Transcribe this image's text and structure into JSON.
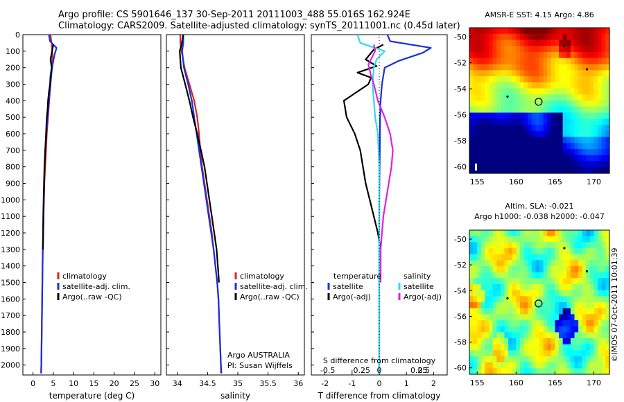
{
  "header": {
    "line1": "Argo profile: CS 5901646_137 30-Sep-2011 20111003_488 55.016S 162.924E",
    "line2": "Climatology: CARS2009. Satellite-adjusted climatology: synTS_20111001.nc (0.45d later)"
  },
  "timestamp": "©IMOS 07-Oct-2011 10:01:39",
  "colors": {
    "climatology": "#e02020",
    "satellite": "#1530e0",
    "argo": "#000000",
    "salinity_satellite": "#30d8f0",
    "salinity_argo": "#e020e0"
  },
  "chart_data": [
    {
      "id": "temperature",
      "type": "line",
      "xlabel": "temperature (deg C)",
      "ylabel": "",
      "xlim": [
        -2.5,
        31.5
      ],
      "ylim": [
        2060,
        0
      ],
      "xticks": [
        "0",
        "5",
        "10",
        "15",
        "20",
        "25",
        "30"
      ],
      "yticks": [
        "0",
        "100",
        "200",
        "300",
        "400",
        "500",
        "600",
        "700",
        "800",
        "900",
        "1000",
        "1100",
        "1200",
        "1300",
        "1400",
        "1500",
        "1600",
        "1700",
        "1800",
        "1900",
        "2000"
      ],
      "legend": [
        "climatology",
        "satellite-adj. clim.",
        "Argo(..raw -QC)"
      ],
      "series": [
        {
          "name": "climatology",
          "color": "#e02020",
          "points": [
            [
              4.3,
              0
            ],
            [
              4.6,
              60
            ],
            [
              4.8,
              120
            ],
            [
              4.6,
              200
            ],
            [
              4.3,
              300
            ],
            [
              4.0,
              400
            ],
            [
              3.7,
              500
            ],
            [
              3.4,
              600
            ],
            [
              3.2,
              700
            ],
            [
              3.0,
              800
            ],
            [
              2.8,
              900
            ],
            [
              2.7,
              1000
            ],
            [
              2.6,
              1100
            ],
            [
              2.5,
              1200
            ],
            [
              2.4,
              1300
            ],
            [
              2.35,
              1400
            ],
            [
              2.3,
              1500
            ],
            [
              2.25,
              1600
            ],
            [
              2.2,
              1700
            ],
            [
              2.15,
              1800
            ],
            [
              2.1,
              1900
            ],
            [
              2.05,
              2000
            ],
            [
              2.0,
              2050
            ]
          ]
        },
        {
          "name": "satellite-adj. clim.",
          "color": "#1530e0",
          "points": [
            [
              3.9,
              0
            ],
            [
              4.2,
              40
            ],
            [
              5.8,
              80
            ],
            [
              5.3,
              120
            ],
            [
              4.7,
              200
            ],
            [
              4.3,
              300
            ],
            [
              3.9,
              400
            ],
            [
              3.6,
              500
            ],
            [
              3.3,
              600
            ],
            [
              3.0,
              700
            ],
            [
              2.8,
              800
            ],
            [
              2.7,
              900
            ],
            [
              2.6,
              1000
            ],
            [
              2.5,
              1100
            ],
            [
              2.45,
              1200
            ],
            [
              2.4,
              1300
            ],
            [
              2.35,
              1400
            ],
            [
              2.3,
              1500
            ],
            [
              2.25,
              1600
            ],
            [
              2.2,
              1700
            ],
            [
              2.15,
              1800
            ],
            [
              2.1,
              1900
            ],
            [
              2.05,
              2000
            ],
            [
              2.0,
              2050
            ]
          ]
        },
        {
          "name": "Argo(..raw -QC)",
          "color": "#000000",
          "points": [
            [
              5.0,
              60
            ],
            [
              4.7,
              100
            ],
            [
              4.3,
              150
            ],
            [
              4.6,
              200
            ],
            [
              4.3,
              250
            ],
            [
              4.2,
              300
            ],
            [
              3.9,
              350
            ],
            [
              3.7,
              400
            ],
            [
              3.6,
              450
            ],
            [
              3.4,
              500
            ],
            [
              3.3,
              550
            ],
            [
              3.2,
              600
            ],
            [
              3.0,
              700
            ],
            [
              2.85,
              800
            ],
            [
              2.75,
              900
            ],
            [
              2.65,
              1000
            ],
            [
              2.55,
              1100
            ],
            [
              2.5,
              1200
            ],
            [
              2.45,
              1300
            ]
          ]
        }
      ]
    },
    {
      "id": "salinity",
      "type": "line",
      "xlabel": "salinity",
      "ylabel": "",
      "xlim": [
        33.82,
        36.1
      ],
      "ylim": [
        2060,
        0
      ],
      "xticks": [
        "34",
        "34.5",
        "35",
        "35.5",
        "36"
      ],
      "legend": [
        "climatology",
        "satellite-adj. clim.",
        "Argo(..raw -QC)"
      ],
      "annotations": [
        "Argo AUSTRALIA",
        "PI: Susan Wijffels"
      ],
      "series": [
        {
          "name": "climatology",
          "color": "#e02020",
          "points": [
            [
              34.05,
              0
            ],
            [
              34.05,
              50
            ],
            [
              34.07,
              100
            ],
            [
              34.12,
              200
            ],
            [
              34.2,
              300
            ],
            [
              34.28,
              400
            ],
            [
              34.33,
              500
            ],
            [
              34.36,
              600
            ],
            [
              34.38,
              700
            ],
            [
              34.41,
              800
            ],
            [
              34.45,
              900
            ],
            [
              34.49,
              1000
            ],
            [
              34.53,
              1100
            ],
            [
              34.57,
              1200
            ],
            [
              34.6,
              1300
            ],
            [
              34.63,
              1400
            ],
            [
              34.66,
              1500
            ],
            [
              34.68,
              1600
            ],
            [
              34.69,
              1700
            ],
            [
              34.7,
              1800
            ],
            [
              34.71,
              1900
            ],
            [
              34.72,
              2000
            ],
            [
              34.72,
              2050
            ]
          ]
        },
        {
          "name": "satellite-adj. clim.",
          "color": "#1530e0",
          "points": [
            [
              34.1,
              0
            ],
            [
              34.1,
              50
            ],
            [
              34.08,
              100
            ],
            [
              34.11,
              200
            ],
            [
              34.18,
              300
            ],
            [
              34.24,
              400
            ],
            [
              34.28,
              500
            ],
            [
              34.32,
              600
            ],
            [
              34.36,
              700
            ],
            [
              34.4,
              800
            ],
            [
              34.44,
              900
            ],
            [
              34.48,
              1000
            ],
            [
              34.52,
              1100
            ],
            [
              34.56,
              1200
            ],
            [
              34.6,
              1300
            ],
            [
              34.63,
              1400
            ],
            [
              34.66,
              1500
            ],
            [
              34.68,
              1600
            ],
            [
              34.69,
              1700
            ],
            [
              34.7,
              1800
            ],
            [
              34.71,
              1900
            ],
            [
              34.72,
              2000
            ],
            [
              34.73,
              2050
            ]
          ]
        },
        {
          "name": "Argo(..raw -QC)",
          "color": "#000000",
          "points": [
            [
              34.1,
              0
            ],
            [
              34.07,
              60
            ],
            [
              34.04,
              100
            ],
            [
              34.06,
              200
            ],
            [
              34.13,
              300
            ],
            [
              34.2,
              400
            ],
            [
              34.26,
              500
            ],
            [
              34.33,
              600
            ],
            [
              34.39,
              700
            ],
            [
              34.45,
              800
            ],
            [
              34.49,
              900
            ],
            [
              34.53,
              1000
            ],
            [
              34.57,
              1100
            ],
            [
              34.61,
              1200
            ],
            [
              34.65,
              1300
            ],
            [
              34.67,
              1400
            ],
            [
              34.69,
              1500
            ]
          ]
        }
      ]
    },
    {
      "id": "difference",
      "type": "line",
      "xlabel": "T difference from climatology",
      "xlabel_top": "S difference from climatology",
      "xlim": [
        -2.5,
        2.5
      ],
      "ylim": [
        2060,
        0
      ],
      "xticks": [
        "-2",
        "-1",
        "0",
        "1",
        "2"
      ],
      "xticks_top": [
        "-0.5",
        "-0.25",
        "0",
        "0.25",
        "0.5"
      ],
      "legend_temperature_title": "temperature",
      "legend_salinity_title": "salinity",
      "legend_temperature": [
        "satellite",
        "Argo(-adj)"
      ],
      "legend_salinity": [
        "satellite",
        "Argo(-adj)"
      ],
      "series": [
        {
          "name": "temperature satellite",
          "color": "#1530e0",
          "points": [
            [
              0.3,
              0
            ],
            [
              0.4,
              40
            ],
            [
              1.9,
              80
            ],
            [
              1.6,
              110
            ],
            [
              0.7,
              160
            ],
            [
              0.2,
              200
            ],
            [
              0.1,
              300
            ],
            [
              0.05,
              400
            ],
            [
              0.03,
              500
            ],
            [
              0.02,
              700
            ],
            [
              0.0,
              1000
            ],
            [
              0.0,
              1500
            ],
            [
              0.0,
              2050
            ]
          ]
        },
        {
          "name": "temperature Argo(-adj)",
          "color": "#000000",
          "points": [
            [
              0.15,
              60
            ],
            [
              -0.2,
              90
            ],
            [
              -0.5,
              150
            ],
            [
              -0.1,
              190
            ],
            [
              -0.8,
              230
            ],
            [
              -0.3,
              260
            ],
            [
              -0.4,
              300
            ],
            [
              -1.3,
              400
            ],
            [
              -1.2,
              500
            ],
            [
              -0.9,
              600
            ],
            [
              -0.7,
              700
            ],
            [
              -0.6,
              800
            ],
            [
              -0.5,
              900
            ],
            [
              -0.35,
              1000
            ],
            [
              -0.2,
              1100
            ],
            [
              -0.05,
              1200
            ],
            [
              0.05,
              1300
            ]
          ]
        },
        {
          "name": "salinity satellite",
          "color": "#30d8f0",
          "points": [
            [
              -0.8,
              0
            ],
            [
              -0.7,
              50
            ],
            [
              0.2,
              100
            ],
            [
              -0.1,
              150
            ],
            [
              -0.2,
              200
            ],
            [
              -0.25,
              300
            ],
            [
              -0.2,
              400
            ],
            [
              -0.15,
              500
            ],
            [
              -0.05,
              600
            ],
            [
              0.0,
              800
            ],
            [
              0.0,
              1000
            ],
            [
              0.0,
              1500
            ],
            [
              0.0,
              2050
            ]
          ]
        },
        {
          "name": "salinity Argo(-adj)",
          "color": "#e020e0",
          "points": [
            [
              -0.2,
              60
            ],
            [
              -0.15,
              100
            ],
            [
              -0.4,
              180
            ],
            [
              -0.3,
              250
            ],
            [
              -0.2,
              300
            ],
            [
              -0.05,
              400
            ],
            [
              0.2,
              500
            ],
            [
              0.4,
              600
            ],
            [
              0.5,
              700
            ],
            [
              0.45,
              800
            ],
            [
              0.35,
              900
            ],
            [
              0.25,
              1000
            ],
            [
              0.15,
              1100
            ],
            [
              0.1,
              1200
            ],
            [
              0.05,
              1300
            ],
            [
              0.05,
              1500
            ]
          ]
        }
      ]
    },
    {
      "id": "sst_map",
      "type": "heatmap",
      "title": "AMSR-E SST: 4.15 Argo: 4.86",
      "xticks": [
        "155",
        "160",
        "165",
        "170"
      ],
      "yticks": [
        "-50",
        "-52",
        "-54",
        "-56",
        "-58",
        "-60"
      ],
      "xlim": [
        154,
        172
      ],
      "ylim": [
        -60.5,
        -49.3
      ],
      "marker": {
        "lon": 162.9,
        "lat": -55.0
      }
    },
    {
      "id": "sla_map",
      "type": "heatmap",
      "title_line1": "Altim. SLA: -0.021",
      "title_line2": "Argo h1000: -0.038 h2000: -0.047",
      "xticks": [
        "155",
        "160",
        "165",
        "170"
      ],
      "yticks": [
        "-50",
        "-52",
        "-54",
        "-56",
        "-58",
        "-60"
      ],
      "xlim": [
        154,
        172
      ],
      "ylim": [
        -60.5,
        -49.3
      ],
      "marker": {
        "lon": 162.9,
        "lat": -55.0
      }
    }
  ]
}
